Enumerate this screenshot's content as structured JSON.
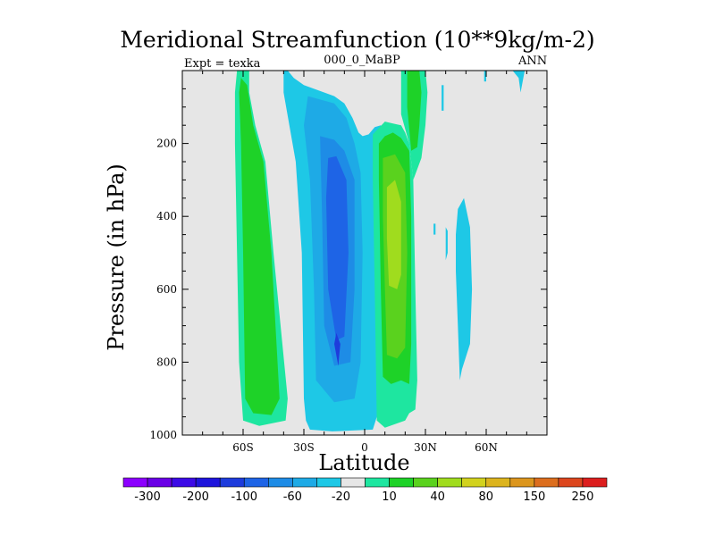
{
  "chart_data": {
    "type": "contour",
    "title": "Meridional Streamfunction (10**9kg/m-2)",
    "left_string": "Expt = texka",
    "center_string": "000_0_MaBP",
    "right_string": "ANN",
    "xlabel": "Latitude",
    "ylabel": "Pressure (in hPa)",
    "xlim": [
      -90,
      90
    ],
    "ylim": [
      1000,
      0
    ],
    "x_ticks": [
      -60,
      -30,
      0,
      30,
      60
    ],
    "x_tick_labels": [
      "60S",
      "30S",
      "0",
      "30N",
      "60N"
    ],
    "y_ticks": [
      200,
      400,
      600,
      800,
      1000
    ],
    "y_tick_labels": [
      "200",
      "400",
      "600",
      "800",
      "1000"
    ],
    "colorbar": {
      "levels": [
        "-300",
        "-200",
        "-100",
        "-60",
        "-20",
        "10",
        "40",
        "80",
        "150",
        "250"
      ],
      "colors": [
        "#8c00ff",
        "#6a00e6",
        "#3c0ae6",
        "#1e14dc",
        "#1e3cdc",
        "#1e64e6",
        "#1e8ce6",
        "#1eaae6",
        "#1ec8e6",
        "#e6e6e6",
        "#1ee6a0",
        "#1ed228",
        "#5ad21e",
        "#a0dc1e",
        "#d2d21e",
        "#dcb41e",
        "#dc961e",
        "#dc6e1e",
        "#dc461e",
        "#dc1e1e"
      ]
    },
    "regions": [
      {
        "name": "sh-hadley-positive",
        "color": "#1ee6a0",
        "points": [
          [
            -63,
            0
          ],
          [
            -57,
            0
          ],
          [
            -57,
            60
          ],
          [
            -54,
            150
          ],
          [
            -49,
            250
          ],
          [
            -45,
            500
          ],
          [
            -38,
            900
          ],
          [
            -39,
            960
          ],
          [
            -52,
            975
          ],
          [
            -60,
            960
          ],
          [
            -62,
            800
          ],
          [
            -63,
            500
          ],
          [
            -64,
            200
          ],
          [
            -64,
            60
          ]
        ]
      },
      {
        "name": "sh-hadley-positive-core",
        "color": "#1ed228",
        "points": [
          [
            -61,
            20
          ],
          [
            -58,
            40
          ],
          [
            -55,
            150
          ],
          [
            -50,
            250
          ],
          [
            -46,
            500
          ],
          [
            -42,
            900
          ],
          [
            -46,
            945
          ],
          [
            -55,
            940
          ],
          [
            -59,
            900
          ],
          [
            -60,
            500
          ],
          [
            -61,
            200
          ],
          [
            -62,
            60
          ]
        ]
      },
      {
        "name": "sh-ferrel-negative",
        "color": "#1ec8e6",
        "points": [
          [
            -40,
            0
          ],
          [
            -38,
            0
          ],
          [
            -35,
            20
          ],
          [
            -30,
            40
          ],
          [
            -15,
            70
          ],
          [
            -10,
            90
          ],
          [
            -6,
            130
          ],
          [
            -3,
            170
          ],
          [
            -1,
            180
          ],
          [
            2,
            175
          ],
          [
            5,
            155
          ],
          [
            8,
            150
          ],
          [
            9,
            165
          ],
          [
            8,
            500
          ],
          [
            6,
            950
          ],
          [
            4,
            985
          ],
          [
            -16,
            990
          ],
          [
            -27,
            985
          ],
          [
            -29,
            960
          ],
          [
            -30,
            900
          ],
          [
            -31,
            500
          ],
          [
            -34,
            250
          ],
          [
            -40,
            60
          ]
        ]
      },
      {
        "name": "ferrel-core-1",
        "color": "#1eaae6",
        "points": [
          [
            -28,
            70
          ],
          [
            -15,
            90
          ],
          [
            -9,
            130
          ],
          [
            -5,
            200
          ],
          [
            -2,
            280
          ],
          [
            -1,
            500
          ],
          [
            -2,
            800
          ],
          [
            -5,
            900
          ],
          [
            -15,
            910
          ],
          [
            -24,
            850
          ],
          [
            -25,
            600
          ],
          [
            -27,
            300
          ],
          [
            -30,
            150
          ]
        ]
      },
      {
        "name": "ferrel-core-2",
        "color": "#1e8ce6",
        "points": [
          [
            -22,
            180
          ],
          [
            -15,
            190
          ],
          [
            -10,
            220
          ],
          [
            -5,
            300
          ],
          [
            -5,
            600
          ],
          [
            -7,
            800
          ],
          [
            -15,
            810
          ],
          [
            -20,
            700
          ],
          [
            -21,
            400
          ]
        ]
      },
      {
        "name": "ferrel-core-3",
        "color": "#1e64e6",
        "points": [
          [
            -18,
            240
          ],
          [
            -14,
            235
          ],
          [
            -9,
            300
          ],
          [
            -8,
            500
          ],
          [
            -10,
            730
          ],
          [
            -14,
            740
          ],
          [
            -18,
            600
          ],
          [
            -19,
            350
          ]
        ]
      },
      {
        "name": "ferrel-core-4",
        "color": "#1e3cdc",
        "points": [
          [
            -14,
            720
          ],
          [
            -12,
            750
          ],
          [
            -13,
            810
          ],
          [
            -15,
            750
          ]
        ]
      },
      {
        "name": "nh-hadley-positive",
        "color": "#1ee6a0",
        "points": [
          [
            4,
            175
          ],
          [
            10,
            140
          ],
          [
            14,
            145
          ],
          [
            18,
            150
          ],
          [
            20,
            170
          ],
          [
            22,
            200
          ],
          [
            24,
            300
          ],
          [
            25,
            600
          ],
          [
            26,
            850
          ],
          [
            25,
            930
          ],
          [
            22,
            940
          ],
          [
            20,
            960
          ],
          [
            10,
            980
          ],
          [
            6,
            960
          ],
          [
            5,
            600
          ],
          [
            4,
            300
          ]
        ]
      },
      {
        "name": "nh-hadley-core-1",
        "color": "#1ed228",
        "points": [
          [
            7,
            200
          ],
          [
            10,
            180
          ],
          [
            14,
            170
          ],
          [
            18,
            185
          ],
          [
            22,
            220
          ],
          [
            23,
            400
          ],
          [
            23,
            750
          ],
          [
            22,
            860
          ],
          [
            18,
            850
          ],
          [
            13,
            860
          ],
          [
            9,
            840
          ],
          [
            8,
            600
          ],
          [
            7,
            300
          ]
        ]
      },
      {
        "name": "nh-hadley-core-2",
        "color": "#5ad21e",
        "points": [
          [
            9,
            240
          ],
          [
            15,
            230
          ],
          [
            20,
            280
          ],
          [
            21,
            500
          ],
          [
            20,
            760
          ],
          [
            16,
            790
          ],
          [
            11,
            780
          ],
          [
            10,
            600
          ],
          [
            9,
            400
          ]
        ]
      },
      {
        "name": "nh-hadley-core-3",
        "color": "#a0dc1e",
        "points": [
          [
            11,
            320
          ],
          [
            15,
            300
          ],
          [
            18,
            360
          ],
          [
            18,
            560
          ],
          [
            16,
            600
          ],
          [
            12,
            590
          ],
          [
            11,
            460
          ]
        ]
      },
      {
        "name": "nh-upper-arm-positive",
        "color": "#1ee6a0",
        "points": [
          [
            18,
            0
          ],
          [
            30,
            0
          ],
          [
            31,
            60
          ],
          [
            30,
            150
          ],
          [
            28,
            240
          ],
          [
            24,
            300
          ],
          [
            22,
            200
          ],
          [
            20,
            160
          ],
          [
            18,
            120
          ]
        ]
      },
      {
        "name": "nh-upper-arm-core",
        "color": "#1ed228",
        "points": [
          [
            21,
            0
          ],
          [
            27,
            0
          ],
          [
            28,
            60
          ],
          [
            27,
            150
          ],
          [
            26,
            210
          ],
          [
            23,
            220
          ],
          [
            22,
            160
          ],
          [
            21,
            100
          ]
        ]
      },
      {
        "name": "nh-mid-negative-1",
        "color": "#1ec8e6",
        "points": [
          [
            46,
            380
          ],
          [
            49,
            350
          ],
          [
            52,
            430
          ],
          [
            53,
            600
          ],
          [
            52,
            750
          ],
          [
            48,
            820
          ],
          [
            47,
            850
          ],
          [
            46,
            700
          ],
          [
            45,
            550
          ],
          [
            45,
            450
          ]
        ]
      },
      {
        "name": "nh-mid-negative-2",
        "color": "#1ec8e6",
        "points": [
          [
            40,
            430
          ],
          [
            41,
            440
          ],
          [
            41,
            500
          ],
          [
            40,
            520
          ]
        ]
      },
      {
        "name": "nh-mid-negative-3",
        "color": "#1ec8e6",
        "points": [
          [
            34,
            420
          ],
          [
            35,
            420
          ],
          [
            35,
            450
          ],
          [
            34,
            450
          ]
        ]
      },
      {
        "name": "nh-high-negative-1",
        "color": "#1ec8e6",
        "points": [
          [
            73,
            0
          ],
          [
            79,
            0
          ],
          [
            77,
            60
          ],
          [
            76,
            20
          ]
        ]
      },
      {
        "name": "nh-high-negative-2",
        "color": "#1ec8e6",
        "points": [
          [
            59,
            0
          ],
          [
            60,
            0
          ],
          [
            60,
            30
          ],
          [
            59,
            30
          ]
        ]
      },
      {
        "name": "nh-top-negative",
        "color": "#1ec8e6",
        "points": [
          [
            38,
            40
          ],
          [
            39,
            40
          ],
          [
            39,
            110
          ],
          [
            38,
            110
          ]
        ]
      }
    ]
  }
}
